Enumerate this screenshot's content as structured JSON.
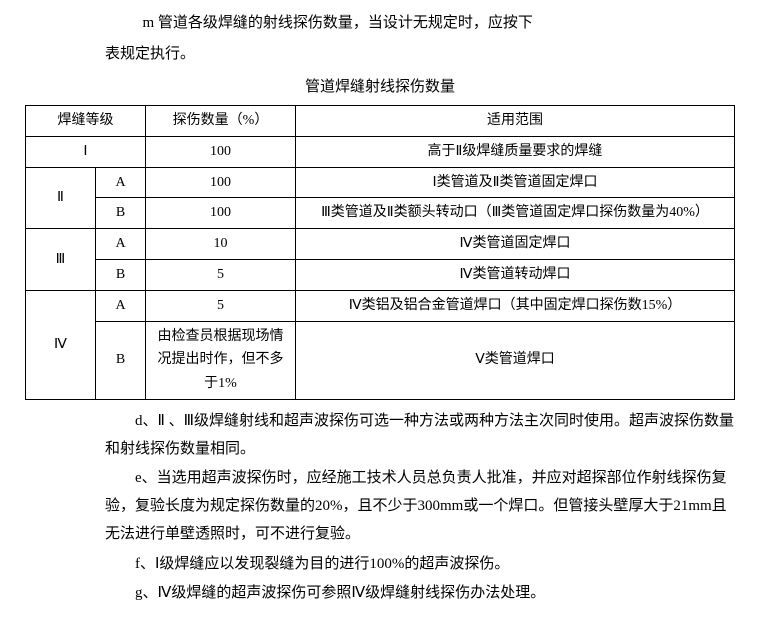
{
  "intro": {
    "line1": "m  管道各级焊缝的射线探伤数量，当设计无规定时，应按下",
    "line2": "表规定执行。"
  },
  "tableTitle": "管道焊缝射线探伤数量",
  "headers": {
    "grade": "焊缝等级",
    "qty": "探伤数量（%）",
    "scope": "适用范围"
  },
  "rows": {
    "r1": {
      "grade": "Ⅰ",
      "qty": "100",
      "scope": "高于Ⅱ级焊缝质量要求的焊缝"
    },
    "r2": {
      "grade": "Ⅱ",
      "sub": "A",
      "qty": "100",
      "scope": "Ⅰ类管道及Ⅱ类管道固定焊口"
    },
    "r3": {
      "sub": "B",
      "qty": "100",
      "scope": "Ⅲ类管道及Ⅱ类额头转动口（Ⅲ类管道固定焊口探伤数量为40%）"
    },
    "r4": {
      "grade": "Ⅲ",
      "sub": "A",
      "qty": "10",
      "scope": "Ⅳ类管道固定焊口"
    },
    "r5": {
      "sub": "B",
      "qty": "5",
      "scope": "Ⅳ类管道转动焊口"
    },
    "r6": {
      "grade": "Ⅳ",
      "sub": "A",
      "qty": "5",
      "scope": "Ⅳ类铝及铝合金管道焊口（其中固定焊口探伤数15%）"
    },
    "r7": {
      "sub": "B",
      "qty": "由检查员根据现场情况提出时作，但不多于1%",
      "scope": "Ⅴ类管道焊口"
    }
  },
  "paragraphs": {
    "d": "d、Ⅱ 、Ⅲ级焊缝射线和超声波探伤可选一种方法或两种方法主次同时使用。超声波探伤数量和射线探伤数量相同。",
    "e": "e、当选用超声波探伤时，应经施工技术人员总负责人批准，并应对超探部位作射线探伤复验，复验长度为规定探伤数量的20%，且不少于300mm或一个焊口。但管接头壁厚大于21mm且无法进行单壁透照时，可不进行复验。",
    "f": "f、Ⅰ级焊缝应以发现裂缝为目的进行100%的超声波探伤。",
    "g": "g、Ⅳ级焊缝的超声波探伤可参照Ⅳ级焊缝射线探伤办法处理。"
  }
}
